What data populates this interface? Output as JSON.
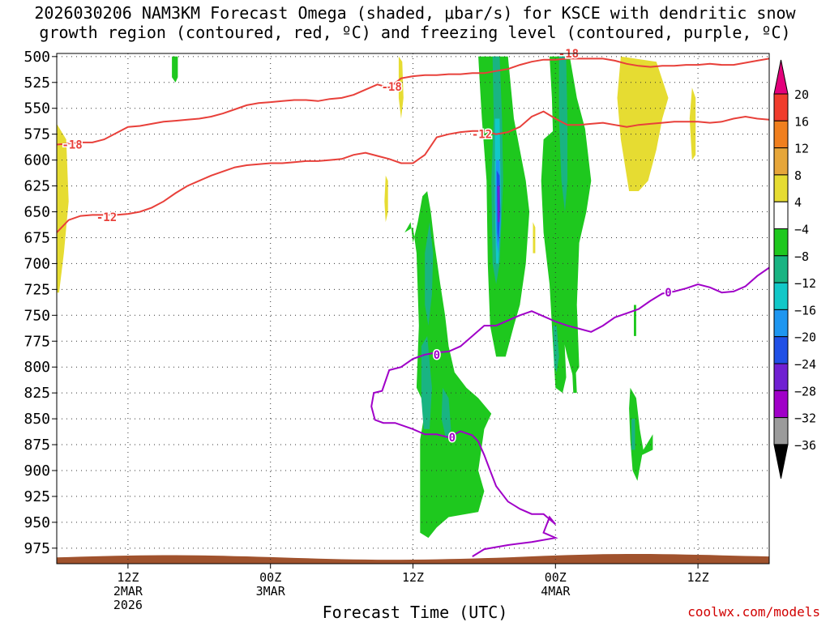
{
  "title": {
    "line1": "2026030206 NAM3KM Forecast Omega (shaded, μbar/s) for KSCE with dendritic snow",
    "line2": "growth region (contoured, red, ºC) and freezing level (contoured, purple, ºC)"
  },
  "credit": "coolwx.com/models",
  "chart_data": {
    "type": "heatmap",
    "xlabel": "Forecast Time (UTC)",
    "ylabel": "",
    "y_axis": {
      "unit": "hPa",
      "range": [
        990,
        497
      ],
      "ticks": [
        500,
        525,
        550,
        575,
        600,
        625,
        650,
        675,
        700,
        725,
        750,
        775,
        800,
        825,
        850,
        875,
        900,
        925,
        950,
        975
      ]
    },
    "x_axis": {
      "range_hours": [
        0,
        60
      ],
      "ticks": [
        {
          "hour": 6,
          "lines": [
            "12Z",
            "2MAR",
            "2026"
          ]
        },
        {
          "hour": 18,
          "lines": [
            "00Z",
            "3MAR"
          ]
        },
        {
          "hour": 30,
          "lines": [
            "12Z"
          ]
        },
        {
          "hour": 42,
          "lines": [
            "00Z",
            "4MAR"
          ]
        },
        {
          "hour": 54,
          "lines": [
            "12Z"
          ]
        }
      ]
    },
    "grid": true,
    "colorbar": {
      "levels": [
        -36,
        -32,
        -28,
        -24,
        -20,
        -16,
        -12,
        -8,
        -4,
        4,
        8,
        12,
        16,
        20
      ],
      "labels": [
        "20",
        "16",
        "12",
        "8",
        "4",
        "−4",
        "−8",
        "−12",
        "−16",
        "−20",
        "−24",
        "−28",
        "−32",
        "−36"
      ],
      "colors_top_to_bottom": [
        "#e3007b",
        "#f03c2c",
        "#f07f1e",
        "#e6a63a",
        "#e6dc32",
        "#ffffff",
        "#1ec81e",
        "#19b482",
        "#12c8c8",
        "#1e96f0",
        "#2050e6",
        "#7020d2",
        "#a000c8",
        "#9b9b9b",
        "#000000"
      ]
    },
    "series": [
      {
        "name": "-18",
        "color": "#e8403a",
        "x": [
          0,
          1,
          2,
          3,
          4,
          5,
          6,
          7,
          8,
          9,
          10,
          11,
          12,
          13,
          14,
          15,
          16,
          17,
          18,
          19,
          20,
          21,
          22,
          23,
          24,
          25,
          26,
          27,
          28,
          29,
          30,
          31,
          32,
          33,
          34,
          35,
          36,
          37,
          38,
          39,
          40,
          41,
          42,
          43,
          44,
          45,
          46,
          47,
          48,
          49,
          50,
          51,
          52,
          53,
          54,
          55,
          56,
          57,
          58,
          59,
          60
        ],
        "y": [
          585,
          584,
          583,
          583,
          580,
          574,
          568,
          567,
          565,
          563,
          562,
          561,
          560,
          558,
          555,
          551,
          547,
          545,
          544,
          543,
          542,
          542,
          543,
          541,
          540,
          537,
          532,
          527,
          530,
          521,
          519,
          518,
          518,
          517,
          517,
          516,
          516,
          514,
          512,
          508,
          505,
          503,
          503,
          502,
          502,
          502,
          502,
          504,
          507,
          509,
          510,
          509,
          509,
          508,
          508,
          507,
          508,
          508,
          506,
          504,
          502
        ]
      },
      {
        "name": "-12",
        "color": "#e8403a",
        "x": [
          0,
          1,
          2,
          3,
          4,
          5,
          6,
          7,
          8,
          9,
          10,
          11,
          12,
          13,
          14,
          15,
          16,
          17,
          18,
          19,
          20,
          21,
          22,
          23,
          24,
          25,
          26,
          27,
          28,
          29,
          30,
          31,
          32,
          33,
          34,
          35,
          36,
          37,
          38,
          39,
          40,
          41,
          42,
          43,
          44,
          45,
          46,
          47,
          48,
          49,
          50,
          51,
          52,
          53,
          54,
          55,
          56,
          57,
          58,
          59,
          60
        ],
        "y": [
          670,
          658,
          654,
          653,
          653,
          653,
          652,
          650,
          646,
          640,
          632,
          625,
          620,
          615,
          611,
          607,
          605,
          604,
          603,
          603,
          602,
          601,
          601,
          600,
          599,
          595,
          593,
          596,
          599,
          603,
          603,
          595,
          578,
          575,
          573,
          572,
          572,
          575,
          573,
          568,
          558,
          553,
          560,
          566,
          566,
          565,
          564,
          566,
          568,
          566,
          565,
          564,
          563,
          563,
          563,
          564,
          563,
          560,
          558,
          560,
          561
        ]
      },
      {
        "name": "0",
        "color": "#a000c8",
        "x": [
          60,
          59,
          58,
          57,
          56,
          55,
          54,
          53,
          52,
          51,
          50,
          49,
          48,
          47,
          46,
          45,
          44,
          43,
          42,
          41,
          40,
          39,
          38,
          37,
          36,
          35,
          34,
          33,
          32,
          31,
          30,
          29,
          28,
          27.4,
          26.7,
          26.5,
          26.8,
          27.5,
          28.5,
          30,
          31,
          32,
          33,
          34,
          35,
          35.5,
          36,
          36.5,
          37,
          38,
          39,
          40,
          41,
          42,
          41.5,
          41,
          42,
          40,
          38,
          36,
          35
        ],
        "y": [
          704,
          712,
          722,
          727,
          728,
          723,
          720,
          724,
          727,
          729,
          736,
          744,
          748,
          752,
          760,
          766,
          763,
          760,
          756,
          751,
          746,
          750,
          755,
          760,
          760,
          770,
          780,
          785,
          786,
          788,
          792,
          800,
          803,
          823,
          825,
          838,
          851,
          854,
          854,
          860,
          865,
          865,
          868,
          862,
          866,
          872,
          885,
          900,
          915,
          930,
          937,
          942,
          942,
          952,
          945,
          960,
          965,
          969,
          972,
          976,
          983
        ]
      }
    ]
  }
}
